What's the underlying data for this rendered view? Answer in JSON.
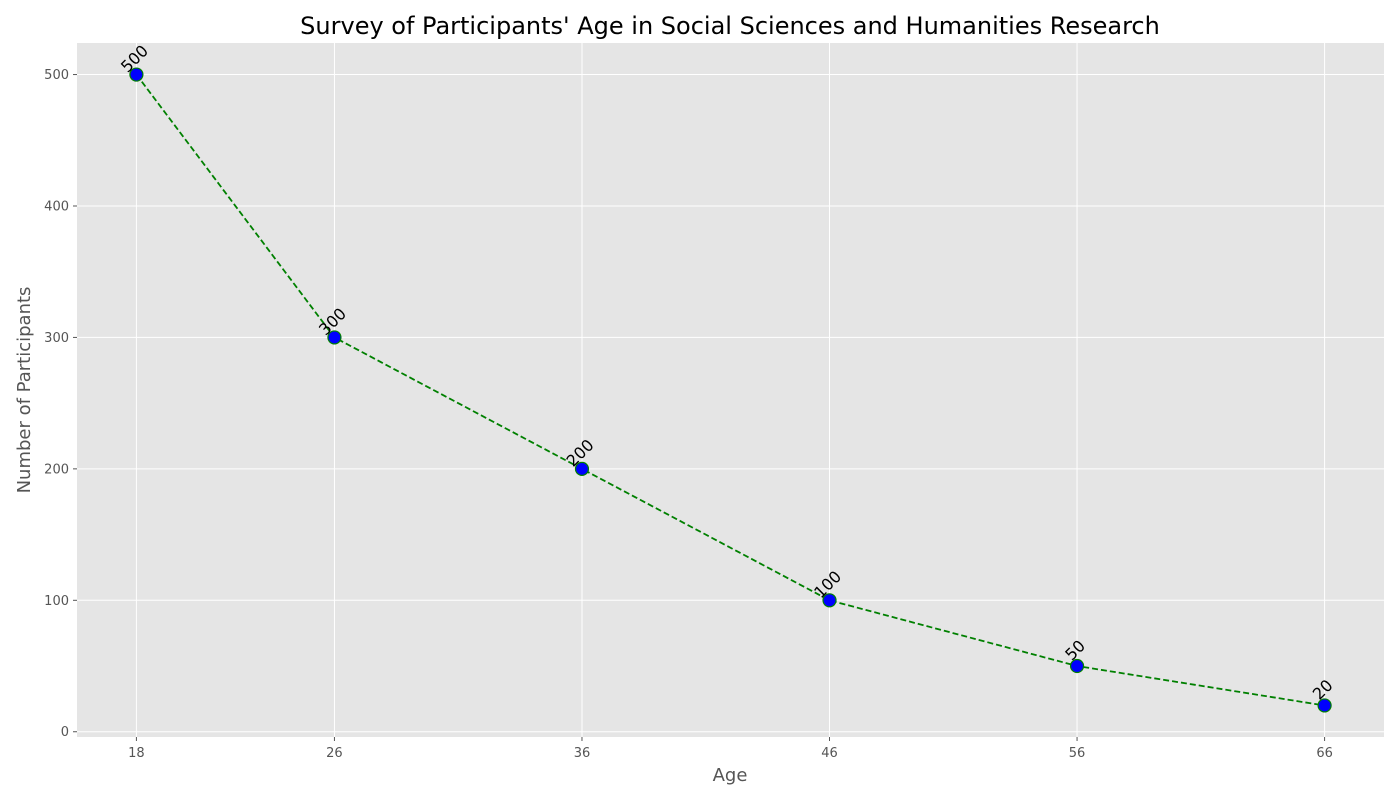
{
  "chart_data": {
    "type": "line",
    "title": "Survey of Participants' Age in Social Sciences and Humanities Research",
    "xlabel": "Age",
    "ylabel": "Number of Participants",
    "x": [
      18,
      26,
      36,
      46,
      56,
      66
    ],
    "x_tick_labels": [
      "18",
      "26",
      "36",
      "46",
      "56",
      "66"
    ],
    "y_ticks": [
      0,
      100,
      200,
      300,
      400,
      500
    ],
    "y_tick_labels": [
      "0",
      "100",
      "200",
      "300",
      "400",
      "500"
    ],
    "series": [
      {
        "values": [
          500,
          300,
          200,
          100,
          50,
          20
        ],
        "data_labels": [
          "500",
          "300",
          "200",
          "100",
          "50",
          "20"
        ],
        "line_color": "#008000",
        "line_style": "dashed",
        "marker_fill": "#0000ff",
        "marker_edge": "#008000"
      }
    ],
    "xlim": [
      15.6,
      68.4
    ],
    "ylim": [
      -4,
      524
    ],
    "grid": true,
    "background": "#e5e5e5"
  }
}
